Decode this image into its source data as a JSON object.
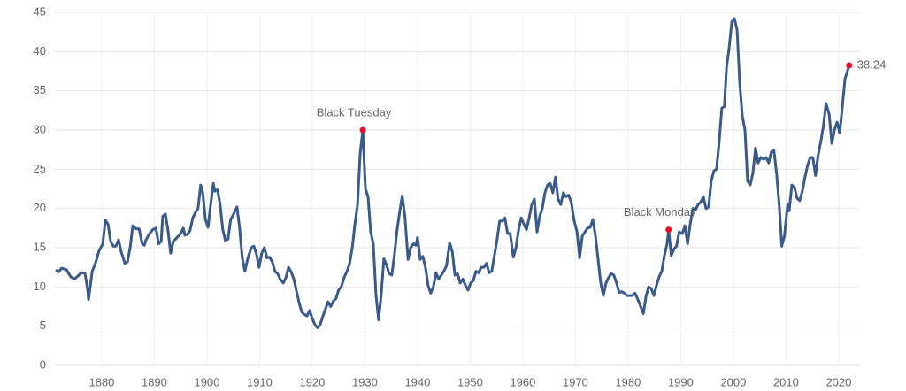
{
  "chart_data": {
    "type": "line",
    "x": [
      1871.3,
      1871.8,
      1872.4,
      1873.3,
      1874.1,
      1874.8,
      1875.5,
      1876.1,
      1876.8,
      1877.3,
      1877.5,
      1878.2,
      1878.8,
      1879.5,
      1880.2,
      1880.7,
      1881.2,
      1881.7,
      1882.2,
      1882.7,
      1883.2,
      1883.7,
      1884.4,
      1884.9,
      1885.4,
      1885.9,
      1886.6,
      1887.1,
      1887.7,
      1888.1,
      1888.4,
      1889.1,
      1889.7,
      1890.3,
      1890.8,
      1891.3,
      1891.6,
      1892.1,
      1892.6,
      1893.1,
      1893.6,
      1894.3,
      1895.0,
      1895.5,
      1895.8,
      1896.3,
      1896.8,
      1897.3,
      1897.8,
      1898.3,
      1898.8,
      1899.2,
      1899.7,
      1900.2,
      1900.7,
      1901.2,
      1901.5,
      1902.0,
      1902.5,
      1903.0,
      1903.5,
      1904.0,
      1904.5,
      1905.0,
      1905.7,
      1906.2,
      1906.7,
      1907.2,
      1907.7,
      1908.4,
      1908.9,
      1909.4,
      1909.9,
      1910.4,
      1910.9,
      1911.4,
      1911.9,
      1912.4,
      1912.9,
      1913.4,
      1913.9,
      1914.5,
      1915.0,
      1915.5,
      1916.0,
      1916.5,
      1917.0,
      1917.5,
      1918.0,
      1918.5,
      1919.0,
      1919.5,
      1920.0,
      1920.5,
      1921.0,
      1921.5,
      1922.0,
      1922.5,
      1923.0,
      1923.5,
      1924.0,
      1924.5,
      1925.0,
      1925.5,
      1926.1,
      1926.6,
      1927.1,
      1927.6,
      1928.1,
      1928.6,
      1929.1,
      1929.6,
      1930.1,
      1930.6,
      1931.1,
      1931.6,
      1932.1,
      1932.6,
      1933.1,
      1933.6,
      1934.1,
      1934.6,
      1935.1,
      1935.6,
      1936.1,
      1936.6,
      1937.1,
      1937.6,
      1938.2,
      1938.7,
      1939.2,
      1939.7,
      1940.0,
      1940.5,
      1941.0,
      1941.5,
      1942.0,
      1942.5,
      1943.0,
      1943.5,
      1944.0,
      1944.5,
      1945.0,
      1945.5,
      1946.1,
      1946.6,
      1947.1,
      1947.6,
      1948.1,
      1948.6,
      1949.1,
      1949.6,
      1950.1,
      1950.6,
      1951.1,
      1951.6,
      1952.1,
      1952.6,
      1953.1,
      1953.6,
      1954.1,
      1954.6,
      1955.1,
      1955.6,
      1956.1,
      1956.6,
      1957.1,
      1957.6,
      1958.2,
      1958.7,
      1959.2,
      1959.7,
      1960.2,
      1960.7,
      1961.2,
      1961.7,
      1962.2,
      1962.7,
      1963.2,
      1963.7,
      1964.2,
      1964.7,
      1965.2,
      1965.7,
      1966.2,
      1966.7,
      1967.2,
      1967.7,
      1968.2,
      1968.7,
      1969.2,
      1969.7,
      1970.3,
      1970.8,
      1971.3,
      1971.8,
      1972.3,
      1972.8,
      1973.3,
      1973.8,
      1974.3,
      1974.8,
      1975.3,
      1975.8,
      1976.3,
      1976.8,
      1977.3,
      1977.8,
      1978.3,
      1978.8,
      1979.3,
      1979.8,
      1980.3,
      1980.8,
      1981.3,
      1981.8,
      1982.4,
      1982.9,
      1983.4,
      1983.9,
      1984.4,
      1984.9,
      1985.4,
      1985.9,
      1986.4,
      1986.9,
      1987.4,
      1987.7,
      1988.2,
      1988.7,
      1989.2,
      1989.7,
      1990.3,
      1990.8,
      1991.3,
      1991.8,
      1992.3,
      1992.8,
      1993.3,
      1993.8,
      1994.3,
      1994.8,
      1995.3,
      1995.8,
      1996.3,
      1996.8,
      1997.3,
      1997.8,
      1998.3,
      1998.7,
      1999.2,
      1999.7,
      2000.2,
      2000.7,
      2001.2,
      2001.7,
      2002.2,
      2002.7,
      2003.2,
      2003.7,
      2004.2,
      2004.7,
      2005.2,
      2005.7,
      2006.2,
      2006.7,
      2007.2,
      2007.7,
      2008.2,
      2008.7,
      2009.2,
      2009.7,
      2010.3,
      2010.6,
      2011.1,
      2011.6,
      2012.1,
      2012.6,
      2013.1,
      2013.6,
      2014.1,
      2014.6,
      2015.1,
      2015.6,
      2016.1,
      2016.6,
      2017.1,
      2017.6,
      2018.2,
      2018.7,
      2019.2,
      2019.7,
      2020.2,
      2020.7,
      2021.2,
      2022.0
    ],
    "values": [
      12.2,
      11.9,
      12.4,
      12.2,
      11.3,
      11.0,
      11.4,
      11.8,
      11.8,
      9.8,
      8.4,
      12.0,
      13.0,
      14.6,
      15.5,
      18.5,
      18.0,
      15.8,
      15.2,
      15.2,
      16.0,
      14.5,
      13.0,
      13.2,
      15.0,
      17.8,
      17.4,
      17.4,
      15.5,
      15.3,
      16.0,
      16.8,
      17.3,
      17.5,
      15.5,
      15.8,
      19.0,
      19.3,
      17.2,
      14.3,
      15.8,
      16.3,
      16.8,
      17.5,
      16.6,
      16.7,
      17.2,
      18.8,
      19.5,
      20.0,
      23.0,
      22.0,
      18.6,
      17.6,
      20.5,
      23.2,
      22.2,
      22.4,
      20.5,
      17.3,
      15.9,
      16.1,
      18.6,
      19.2,
      20.2,
      17.5,
      13.7,
      12.0,
      13.5,
      15.0,
      15.2,
      14.2,
      12.5,
      14.3,
      15.0,
      13.7,
      13.8,
      13.2,
      12.0,
      11.7,
      11.0,
      10.5,
      11.2,
      12.5,
      11.9,
      11.0,
      9.5,
      8.0,
      6.8,
      6.5,
      6.3,
      7.0,
      6.0,
      5.2,
      4.8,
      5.2,
      6.2,
      7.2,
      8.1,
      7.5,
      8.2,
      8.5,
      9.6,
      10.0,
      11.3,
      12.0,
      13.0,
      15.0,
      18.0,
      20.5,
      27.0,
      30.0,
      22.5,
      21.5,
      17.0,
      15.5,
      9.0,
      5.8,
      9.0,
      13.6,
      12.8,
      11.7,
      11.5,
      14.0,
      17.2,
      19.5,
      21.6,
      19.0,
      13.5,
      15.0,
      15.5,
      15.3,
      16.3,
      13.5,
      13.9,
      12.5,
      10.2,
      9.2,
      10.0,
      11.8,
      11.0,
      11.5,
      12.0,
      12.7,
      15.6,
      14.5,
      11.5,
      11.7,
      10.5,
      11.0,
      10.2,
      9.6,
      10.5,
      10.8,
      12.0,
      11.8,
      12.5,
      12.5,
      13.0,
      11.8,
      12.0,
      14.0,
      16.0,
      18.4,
      18.4,
      18.8,
      16.8,
      16.8,
      13.8,
      15.0,
      17.3,
      18.8,
      18.0,
      17.3,
      18.8,
      20.5,
      21.2,
      17.0,
      19.0,
      20.0,
      22.0,
      23.0,
      23.2,
      22.0,
      24.0,
      21.2,
      20.5,
      22.0,
      21.5,
      21.7,
      20.8,
      18.6,
      17.0,
      13.7,
      16.5,
      17.0,
      17.5,
      17.6,
      18.6,
      16.5,
      13.5,
      10.5,
      8.9,
      10.5,
      11.2,
      11.7,
      11.5,
      10.5,
      9.3,
      9.4,
      9.2,
      8.9,
      8.9,
      8.9,
      9.2,
      8.5,
      7.5,
      6.6,
      8.8,
      10.0,
      9.8,
      8.9,
      10.2,
      11.3,
      12.0,
      14.0,
      15.5,
      17.3,
      14.0,
      14.8,
      15.2,
      17.0,
      16.8,
      17.8,
      15.5,
      18.0,
      20.0,
      19.8,
      20.5,
      20.8,
      21.5,
      20.0,
      20.2,
      23.5,
      24.8,
      25.0,
      28.5,
      32.8,
      33.0,
      38.0,
      40.5,
      43.8,
      44.2,
      42.8,
      36.0,
      31.8,
      30.0,
      23.5,
      23.0,
      24.5,
      27.7,
      25.8,
      26.5,
      26.3,
      26.5,
      25.8,
      27.2,
      27.4,
      24.5,
      20.5,
      15.2,
      16.5,
      20.5,
      19.7,
      23.0,
      22.7,
      21.3,
      21.0,
      22.2,
      24.0,
      25.5,
      26.5,
      26.5,
      24.2,
      26.8,
      28.5,
      30.5,
      33.4,
      32.0,
      28.3,
      30.0,
      31.0,
      29.6,
      33.0,
      36.5,
      38.24
    ],
    "color": "#3a5a8c",
    "annotations": [
      {
        "label": "Black Tuesday",
        "x": 1929.6,
        "y": 30.0
      },
      {
        "label": "Black Monday",
        "x": 1987.7,
        "y": 17.3
      },
      {
        "label": "38.24",
        "x": 2022.0,
        "y": 38.24
      }
    ],
    "marker_color": "#e8102e",
    "xlim": [
      1871,
      2024
    ],
    "ylim": [
      0,
      45
    ],
    "xticks": [
      1880,
      1890,
      1900,
      1910,
      1920,
      1930,
      1940,
      1950,
      1960,
      1970,
      1980,
      1990,
      2000,
      2010,
      2020
    ],
    "yticks": [
      0,
      5,
      10,
      15,
      20,
      25,
      30,
      35,
      40,
      45
    ],
    "grid": true
  }
}
